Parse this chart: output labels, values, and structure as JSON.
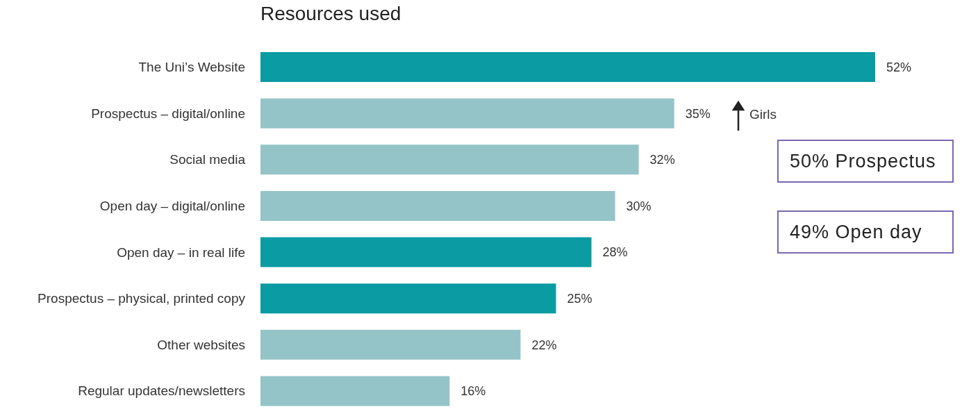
{
  "chart_data": {
    "type": "bar",
    "orientation": "horizontal",
    "title": "Resources used",
    "categories": [
      "The Uni’s Website",
      "Prospectus – digital/online",
      "Social media",
      "Open day – digital/online",
      "Open day – in real life",
      "Prospectus – physical, printed copy",
      "Other websites",
      "Regular updates/newsletters"
    ],
    "values": [
      52,
      35,
      32,
      30,
      28,
      25,
      22,
      16
    ],
    "colors": [
      "#0a9ba3",
      "#94c4c7",
      "#94c4c7",
      "#94c4c7",
      "#0a9ba3",
      "#0a9ba3",
      "#94c4c7",
      "#94c4c7"
    ],
    "value_labels": [
      "52%",
      "35%",
      "32%",
      "30%",
      "28%",
      "25%",
      "22%",
      "16%"
    ],
    "tick_labels": "y",
    "annotations": [
      "Girls",
      "50% Prospectus",
      "49% Open day"
    ]
  }
}
